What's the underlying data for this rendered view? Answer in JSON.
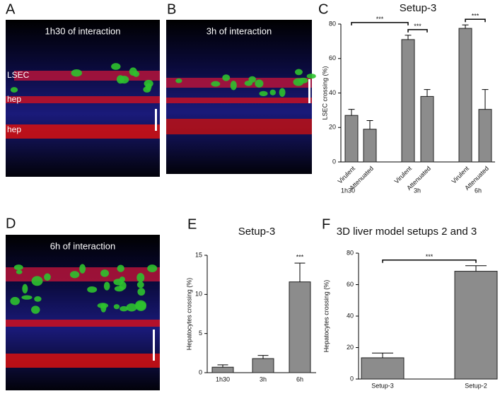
{
  "panels": {
    "A": {
      "letter": "A",
      "caption": "1h30 of interaction",
      "labels": [
        "LSEC",
        "hep",
        "hep"
      ]
    },
    "B": {
      "letter": "B",
      "caption": "3h of interaction"
    },
    "D": {
      "letter": "D",
      "caption": "6h of interaction"
    }
  },
  "chart_data": [
    {
      "type": "bar",
      "letter": "C",
      "title": "Setup-3",
      "y_label": "LSEC crossing (%)",
      "categories": [
        "Virulent",
        "Attenuated",
        "Virulent",
        "Attenuated",
        "Virulent",
        "Attenuated"
      ],
      "groups": [
        "1h30",
        "3h",
        "6h"
      ],
      "values": [
        27,
        19,
        71,
        38,
        77.5,
        30.5
      ],
      "errors": [
        3.5,
        5,
        2.5,
        4,
        2,
        11.5
      ],
      "color": "#8c8c8c",
      "ylim": [
        0,
        80
      ],
      "yticks": [
        0,
        20,
        40,
        60,
        80
      ],
      "significance": [
        {
          "text": "***",
          "between": [
            0,
            2
          ]
        },
        {
          "text": "***",
          "between": [
            2,
            3
          ]
        },
        {
          "text": "***",
          "between": [
            4,
            5
          ]
        }
      ]
    },
    {
      "type": "bar",
      "letter": "E",
      "title": "Setup-3",
      "y_label": "Hepatocytes crossing (%)",
      "categories": [
        "1h30",
        "3h",
        "6h"
      ],
      "values": [
        0.7,
        1.8,
        11.6
      ],
      "errors": [
        0.3,
        0.4,
        2.4
      ],
      "color": "#8c8c8c",
      "ylim": [
        0,
        15
      ],
      "yticks": [
        0,
        5,
        10,
        15
      ],
      "significance": [
        {
          "text": "***",
          "between": [
            2,
            2
          ]
        }
      ]
    },
    {
      "type": "bar",
      "letter": "F",
      "title": "3D liver model setups 2 and 3",
      "y_label": "Hepatocytes crossing (%)",
      "categories": [
        "Setup-3",
        "Setup-2"
      ],
      "values": [
        13.5,
        68.5
      ],
      "errors": [
        3,
        3.5
      ],
      "color": "#8c8c8c",
      "ylim": [
        0,
        80
      ],
      "yticks": [
        0,
        20,
        40,
        60,
        80
      ],
      "significance": [
        {
          "text": "***",
          "between": [
            0,
            1
          ]
        }
      ]
    }
  ]
}
